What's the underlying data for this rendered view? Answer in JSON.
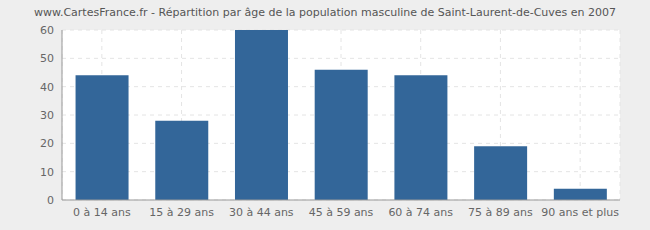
{
  "chart_data": {
    "type": "bar",
    "title": "www.CartesFrance.fr - Répartition par âge de la population masculine de Saint-Laurent-de-Cuves en 2007",
    "categories": [
      "0 à 14 ans",
      "15 à 29 ans",
      "30 à 44 ans",
      "45 à 59 ans",
      "60 à 74 ans",
      "75 à 89 ans",
      "90 ans et plus"
    ],
    "values": [
      44,
      28,
      60,
      46,
      44,
      19,
      4
    ],
    "color": "#336699",
    "ylim": [
      0,
      60
    ],
    "yticks": [
      0,
      10,
      20,
      30,
      40,
      50,
      60
    ],
    "grid": true
  }
}
